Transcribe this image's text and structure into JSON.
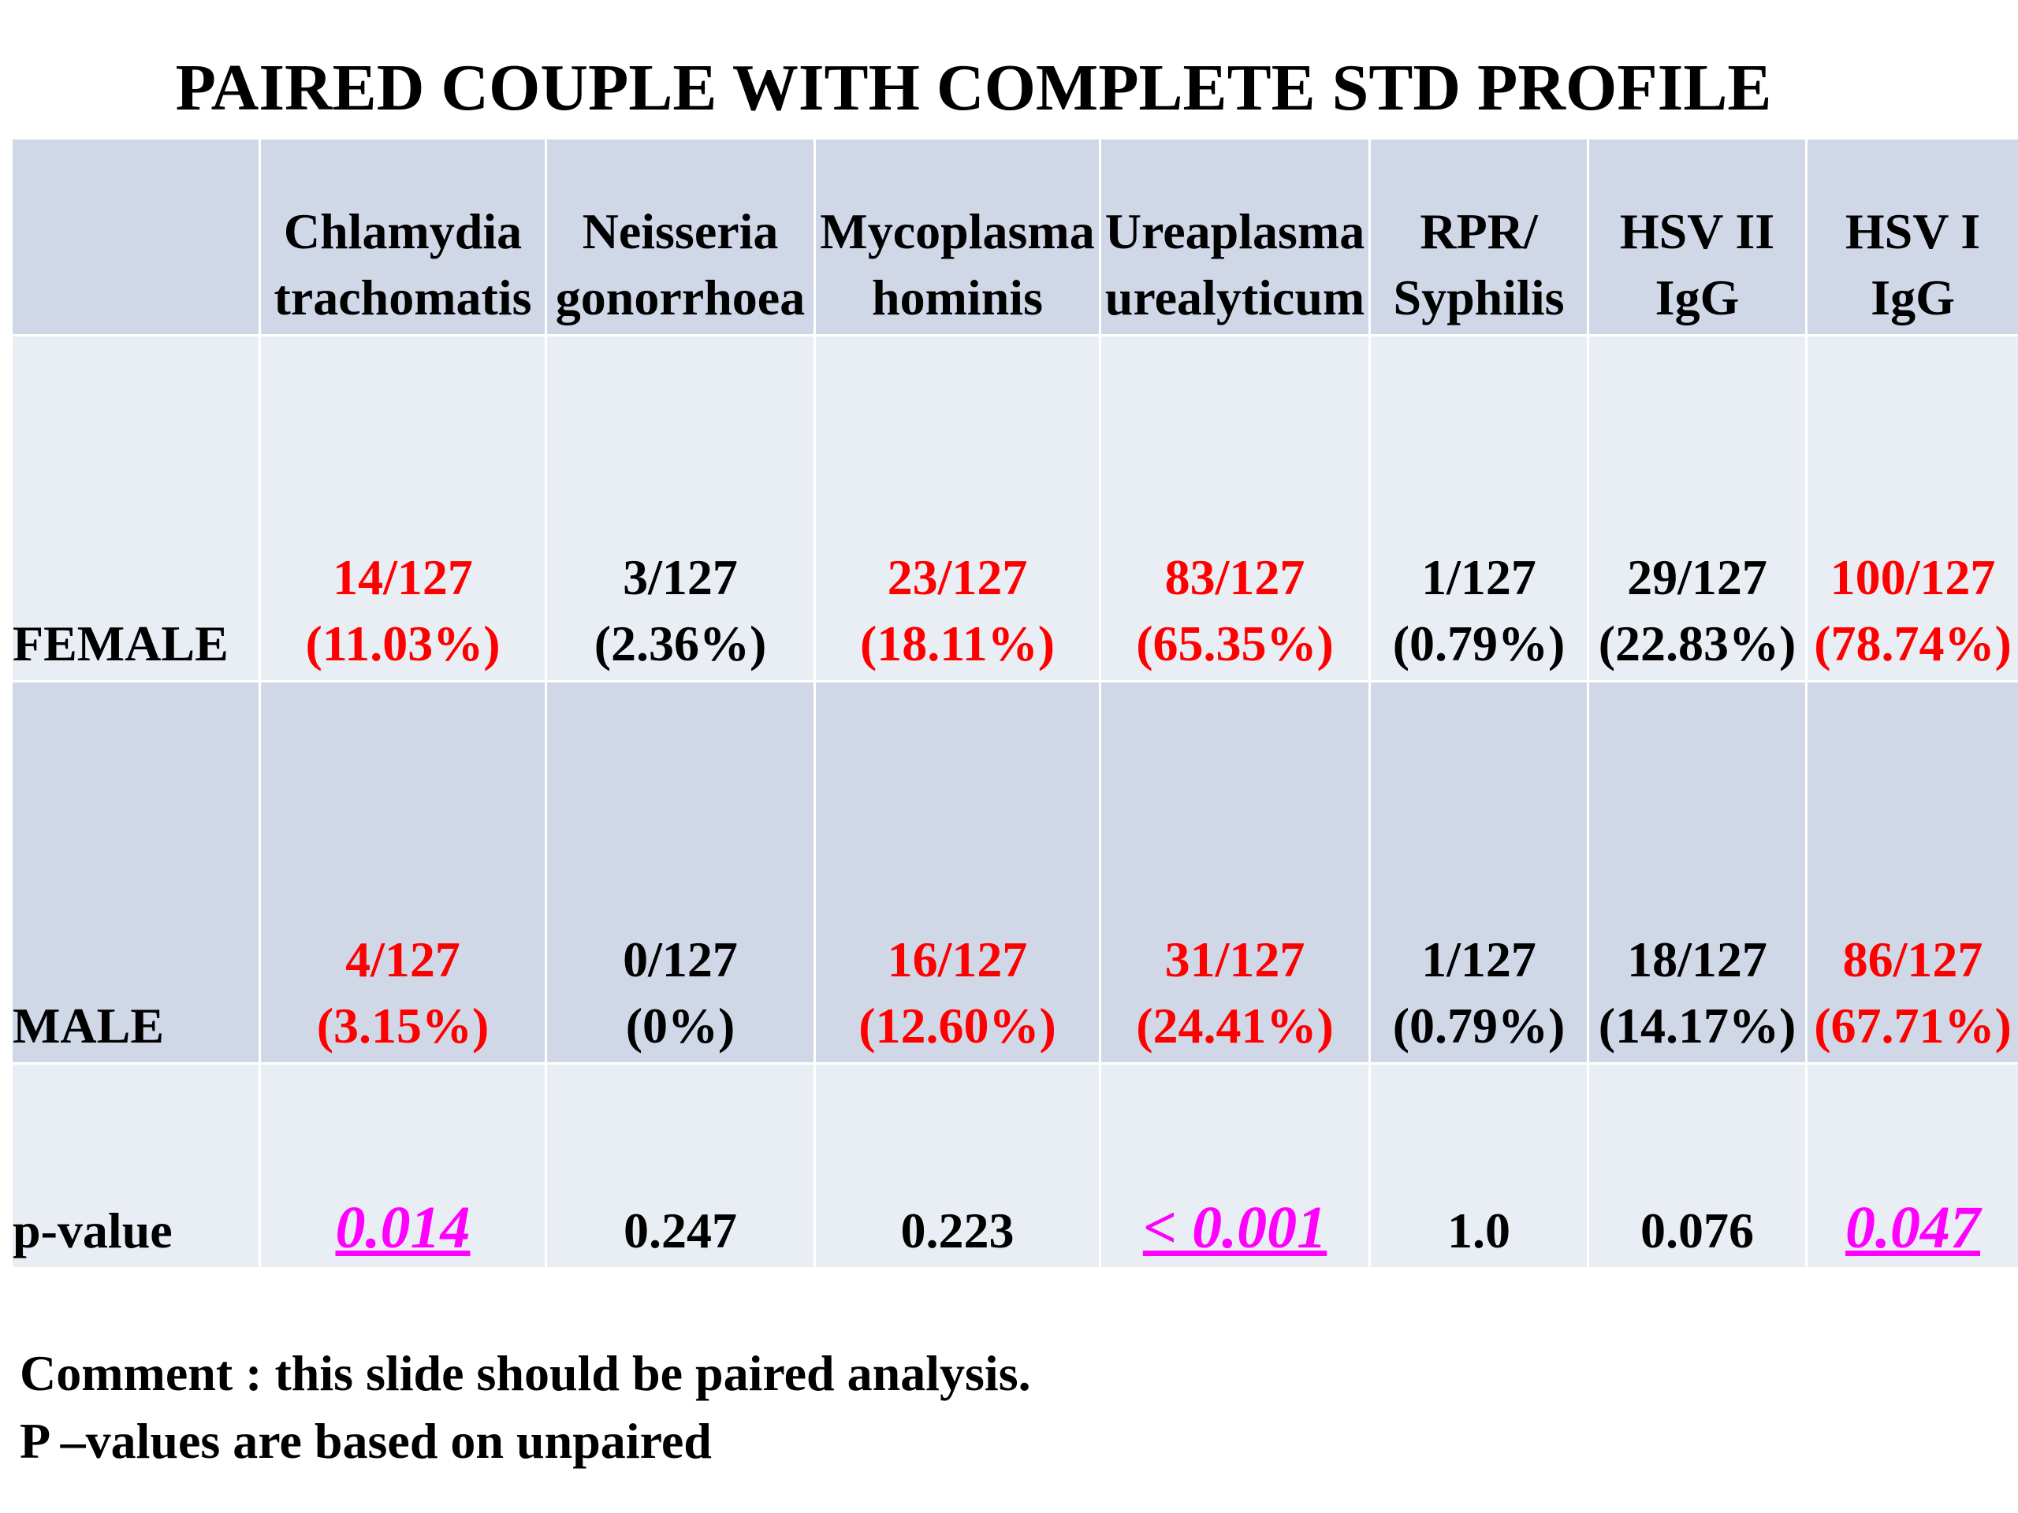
{
  "title": "PAIRED COUPLE WITH COMPLETE STD PROFILE",
  "table": {
    "columns": [
      {
        "line1": "Chlamydia",
        "line2": "trachomatis"
      },
      {
        "line1": "Neisseria",
        "line2": "gonorrhoea"
      },
      {
        "line1": "Mycoplasma",
        "line2": "hominis"
      },
      {
        "line1": "Ureaplasma",
        "line2": "urealyticum"
      },
      {
        "line1": "RPR/",
        "line2": "Syphilis"
      },
      {
        "line1": "HSV II",
        "line2": "IgG"
      },
      {
        "line1": "HSV I",
        "line2": "IgG"
      }
    ],
    "female": {
      "label": "FEMALE",
      "cells": [
        {
          "count": "14/127",
          "pct": "(11.03%)"
        },
        {
          "count": "3/127",
          "pct": "(2.36%)"
        },
        {
          "count": "23/127",
          "pct": "(18.11%)"
        },
        {
          "count": "83/127",
          "pct": "(65.35%)"
        },
        {
          "count": "1/127",
          "pct": "(0.79%)"
        },
        {
          "count": "29/127",
          "pct": "(22.83%)"
        },
        {
          "count": "100/127",
          "pct": "(78.74%)"
        }
      ]
    },
    "male": {
      "label": "MALE",
      "cells": [
        {
          "count": "4/127",
          "pct": "(3.15%)"
        },
        {
          "count": "0/127",
          "pct": "(0%)"
        },
        {
          "count": "16/127",
          "pct": "(12.60%)"
        },
        {
          "count": "31/127",
          "pct": "(24.41%)"
        },
        {
          "count": "1/127",
          "pct": "(0.79%)"
        },
        {
          "count": "18/127",
          "pct": "(14.17%)"
        },
        {
          "count": "86/127",
          "pct": "(67.71%)"
        }
      ]
    },
    "pvalue": {
      "label": "p-value",
      "cells": [
        "0.014",
        "0.247",
        "0.223",
        "< 0.001",
        "1.0",
        "0.076",
        "0.047"
      ]
    }
  },
  "comment": {
    "line1": "Comment : this slide should be paired analysis.",
    "line2": "P –values are based on unpaired"
  },
  "colors": {
    "significant": "#ff0000",
    "significant_pvalue": "#ff00ff",
    "header_row_bg": "#d0d8e8",
    "light_row_bg": "#e9edf4"
  }
}
